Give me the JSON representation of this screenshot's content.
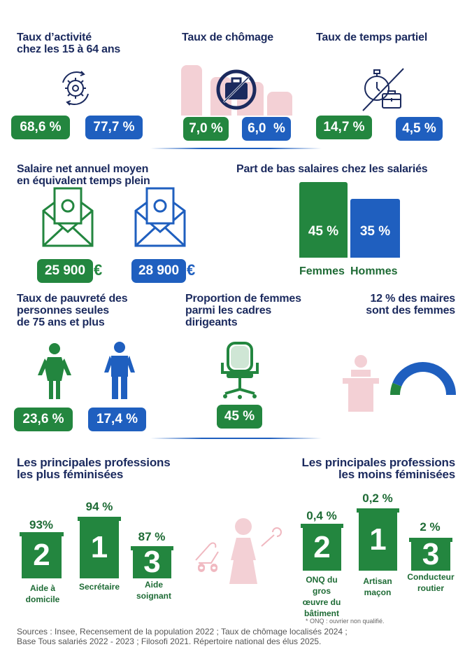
{
  "colors": {
    "women": "#23863f",
    "men": "#1f5fbf",
    "title": "#1b2a5e",
    "decor": "#f3d0d5"
  },
  "activite": {
    "title": "Taux d’activité\nchez les 15 à 64 ans",
    "women": "68,6 %",
    "men": "77,7 %",
    "icon": "gear-cycle-icon"
  },
  "chomage": {
    "title": "Taux de chômage",
    "women": "7,0 %",
    "men": "6,0  %",
    "icon": "no-briefcase-icon"
  },
  "partiel": {
    "title": "Taux de temps partiel",
    "women": "14,7 %",
    "men": "4,5 %",
    "icon": "stopwatch-briefcase-icon"
  },
  "salaire": {
    "title": "Salaire net annuel moyen\nen équivalent temps plein",
    "women": "25 900",
    "men": "28 900",
    "currency": "€",
    "icon": "money-envelope-icon"
  },
  "bas_salaires": {
    "title": "Part de bas salaires chez les salariés",
    "women": "45 %",
    "men": "35 %",
    "women_value": 45,
    "men_value": 35,
    "legend_women": "Femmes",
    "legend_men": "Hommes"
  },
  "pauvrete": {
    "title": "Taux de pauvreté des\npersonnes seules\nde 75 ans et plus",
    "women": "23,6 %",
    "men": "17,4 %"
  },
  "cadres": {
    "title": "Proportion de femmes\nparmi les cadres\ndirigeants",
    "women": "45 %",
    "icon": "office-chair-icon"
  },
  "maires": {
    "title": "12 % des maires\nsont des femmes",
    "share": 12
  },
  "plus_feminisees": {
    "title": "Les principales professions\nles plus féminisées",
    "items": [
      {
        "rank": "2",
        "value": "93%",
        "label": "Aide à\ndomicile"
      },
      {
        "rank": "1",
        "value": "94 %",
        "label": "Secrétaire"
      },
      {
        "rank": "3",
        "value": "87 %",
        "label": "Aide\nsoignant"
      }
    ]
  },
  "moins_feminisees": {
    "title": "Les principales professions\nles moins féminisées",
    "items": [
      {
        "rank": "2",
        "value": "0,4 %",
        "label": "ONQ du\ngros\nœuvre du\nbâtiment"
      },
      {
        "rank": "1",
        "value": "0,2 %",
        "label": "Artisan\nmaçon"
      },
      {
        "rank": "3",
        "value": "2 %",
        "label": "Conducteur\nroutier"
      }
    ]
  },
  "footnote": "* ONQ : ouvrier non qualifié.",
  "sources": "Sources : Insee, Recensement de la population 2022 ; Taux de chômage localisés 2024 ;\nBase Tous salariés 2022 - 2023 ; Filosofi 2021. Répertoire national des élus 2025."
}
